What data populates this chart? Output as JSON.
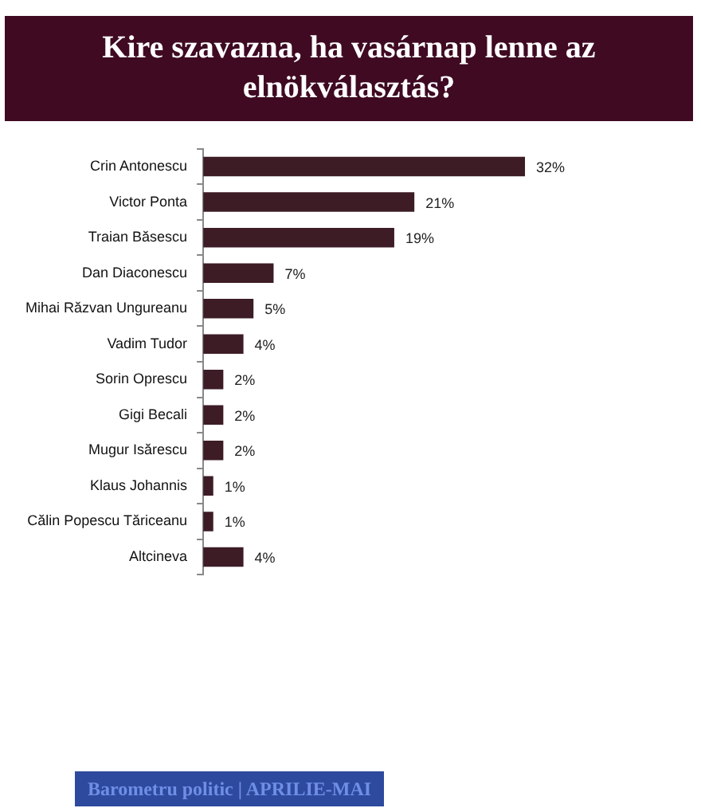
{
  "chart_data": {
    "type": "bar",
    "orientation": "horizontal",
    "title": "Kire szavazna, ha vasárnap lenne az elnökválasztás?",
    "categories": [
      "Crin Antonescu",
      "Victor Ponta",
      "Traian Băsescu",
      "Dan Diaconescu",
      "Mihai Răzvan Ungureanu",
      "Vadim Tudor",
      "Sorin Oprescu",
      "Gigi Becali",
      "Mugur Isărescu",
      "Klaus Johannis",
      "Călin Popescu Tăriceanu",
      "Altcineva"
    ],
    "values": [
      32,
      21,
      19,
      7,
      5,
      4,
      2,
      2,
      2,
      1,
      1,
      4
    ],
    "value_labels": [
      "32%",
      "21%",
      "19%",
      "7%",
      "5%",
      "4%",
      "2%",
      "2%",
      "2%",
      "1%",
      "1%",
      "4%"
    ],
    "color": "#3d1c26",
    "grid": false,
    "legend": false,
    "annotations": [
      "Barometru politic | APRILIE-MAI"
    ]
  }
}
